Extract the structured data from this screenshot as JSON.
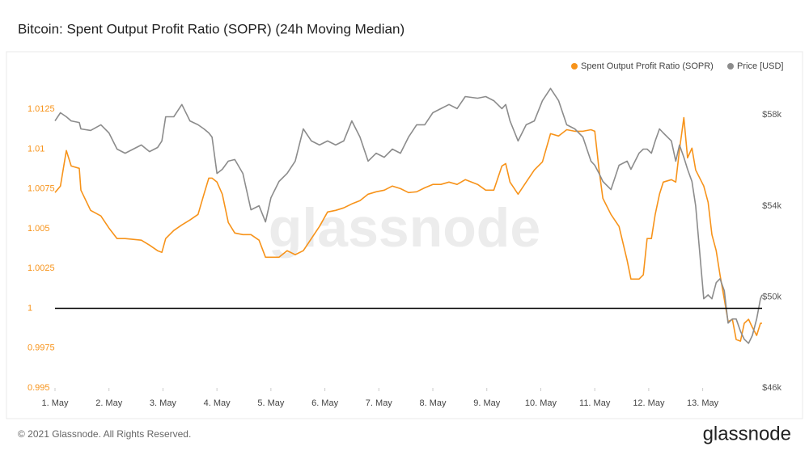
{
  "chart_data": {
    "type": "line",
    "title": "Bitcoin: Spent Output Profit Ratio (SOPR) (24h Moving Median)",
    "watermark": "glassnode",
    "x": [
      1.0,
      1.1,
      1.21,
      1.3,
      1.45,
      1.48,
      1.66,
      1.85,
      2.0,
      2.15,
      2.3,
      2.6,
      2.75,
      2.9,
      2.98,
      3.05,
      3.2,
      3.35,
      3.5,
      3.65,
      3.76,
      3.85,
      3.91,
      4.0,
      4.1,
      4.21,
      4.33,
      4.48,
      4.63,
      4.78,
      4.9,
      5.0,
      5.15,
      5.3,
      5.45,
      5.6,
      5.75,
      5.9,
      6.05,
      6.2,
      6.35,
      6.5,
      6.65,
      6.8,
      6.95,
      7.1,
      7.25,
      7.4,
      7.55,
      7.7,
      7.85,
      8.0,
      8.15,
      8.3,
      8.45,
      8.6,
      8.83,
      8.98,
      9.13,
      9.28,
      9.35,
      9.43,
      9.58,
      9.73,
      9.88,
      10.03,
      10.18,
      10.33,
      10.48,
      10.63,
      10.78,
      10.93,
      11.0,
      11.08,
      11.15,
      11.3,
      11.45,
      11.6,
      11.67,
      11.82,
      11.9,
      11.97,
      12.05,
      12.12,
      12.2,
      12.27,
      12.42,
      12.5,
      12.57,
      12.65,
      12.72,
      12.8,
      12.87,
      13.02,
      13.1,
      13.17,
      13.25,
      13.32,
      13.4,
      13.47,
      13.55,
      13.62,
      13.7,
      13.77,
      13.85,
      13.92,
      14.0,
      14.07,
      14.1
    ],
    "xlim": [
      1,
      14.1
    ],
    "xticks": [
      {
        "value": 1,
        "label": "1. May"
      },
      {
        "value": 2,
        "label": "2. May"
      },
      {
        "value": 3,
        "label": "3. May"
      },
      {
        "value": 4,
        "label": "4. May"
      },
      {
        "value": 5,
        "label": "5. May"
      },
      {
        "value": 6,
        "label": "6. May"
      },
      {
        "value": 7,
        "label": "7. May"
      },
      {
        "value": 8,
        "label": "8. May"
      },
      {
        "value": 9,
        "label": "9. May"
      },
      {
        "value": 10,
        "label": "10. May"
      },
      {
        "value": 11,
        "label": "11. May"
      },
      {
        "value": 12,
        "label": "12. May"
      },
      {
        "value": 13,
        "label": "13. May"
      }
    ],
    "ylim": [
      0.995,
      1.015
    ],
    "yticks": [
      0.995,
      0.9975,
      1,
      1.0025,
      1.005,
      1.0075,
      1.01,
      1.0125
    ],
    "y2lim": [
      46000,
      60000
    ],
    "y2ticks": [
      {
        "value": 46000,
        "label": "$46k"
      },
      {
        "value": 50000,
        "label": "$50k"
      },
      {
        "value": 54000,
        "label": "$54k"
      },
      {
        "value": 58000,
        "label": "$58k"
      }
    ],
    "reference_line": 1,
    "reference_color": "#000000",
    "grid": false,
    "legend": "top-right",
    "series": [
      {
        "name": "Spent Output Profit Ratio (SOPR)",
        "color": "#f7931a",
        "axis": "y",
        "values": [
          1.00727,
          1.00768,
          1.00991,
          1.00894,
          1.00879,
          1.00742,
          1.00615,
          1.0058,
          1.00504,
          1.00438,
          1.00438,
          1.00428,
          1.00397,
          1.00362,
          1.00352,
          1.00438,
          1.00489,
          1.00524,
          1.00555,
          1.0059,
          1.00717,
          1.00818,
          1.00818,
          1.00793,
          1.00717,
          1.00539,
          1.00473,
          1.00463,
          1.00463,
          1.00428,
          1.00321,
          1.00321,
          1.00321,
          1.00362,
          1.00337,
          1.00362,
          1.00438,
          1.00514,
          1.00605,
          1.00615,
          1.00631,
          1.00656,
          1.00676,
          1.00717,
          1.00732,
          1.00742,
          1.00768,
          1.00752,
          1.00727,
          1.00732,
          1.00757,
          1.00778,
          1.00778,
          1.00793,
          1.00778,
          1.00808,
          1.00778,
          1.00742,
          1.00742,
          1.00894,
          1.00909,
          1.00793,
          1.00717,
          1.00793,
          1.00869,
          1.0092,
          1.01097,
          1.01082,
          1.01122,
          1.01112,
          1.01112,
          1.01122,
          1.01112,
          1.00869,
          1.00691,
          1.0059,
          1.00514,
          1.00301,
          1.00184,
          1.00184,
          1.0021,
          1.00438,
          1.00438,
          1.0059,
          1.00717,
          1.00793,
          1.00808,
          1.00793,
          1.00996,
          1.01198,
          1.00945,
          1.01006,
          1.00869,
          1.00768,
          1.00666,
          1.00463,
          1.00362,
          1.0021,
          1.00058,
          0.99916,
          0.99931,
          0.99804,
          0.99794,
          0.99906,
          0.99931,
          0.9988,
          0.9983,
          0.99906,
          0.99906
        ]
      },
      {
        "name": "Price [USD]",
        "color": "#8c8c8c",
        "axis": "y2",
        "values": [
          57740,
          58100,
          57920,
          57740,
          57670,
          57390,
          57320,
          57570,
          57210,
          56500,
          56320,
          56680,
          56390,
          56570,
          56860,
          57920,
          57920,
          58460,
          57740,
          57570,
          57390,
          57210,
          57030,
          55430,
          55610,
          55970,
          56040,
          55430,
          53830,
          54010,
          53300,
          54360,
          55080,
          55430,
          55970,
          57390,
          56860,
          56680,
          56860,
          56680,
          56860,
          57740,
          57030,
          55970,
          56320,
          56140,
          56500,
          56320,
          57030,
          57570,
          57570,
          58100,
          58280,
          58460,
          58280,
          58810,
          58740,
          58810,
          58630,
          58280,
          58460,
          57740,
          56860,
          57570,
          57740,
          58630,
          59170,
          58630,
          57570,
          57390,
          57030,
          55970,
          55790,
          55430,
          55080,
          54720,
          55790,
          55970,
          55610,
          56320,
          56500,
          56500,
          56320,
          56860,
          57390,
          57210,
          56860,
          55970,
          56680,
          56140,
          55610,
          55080,
          54010,
          49920,
          50090,
          49920,
          50630,
          50800,
          50270,
          48850,
          49030,
          49030,
          48490,
          48140,
          47960,
          48310,
          49030,
          49920,
          50090
        ]
      }
    ]
  },
  "footer": "© 2021 Glassnode. All Rights Reserved.",
  "logo": "glassnode"
}
